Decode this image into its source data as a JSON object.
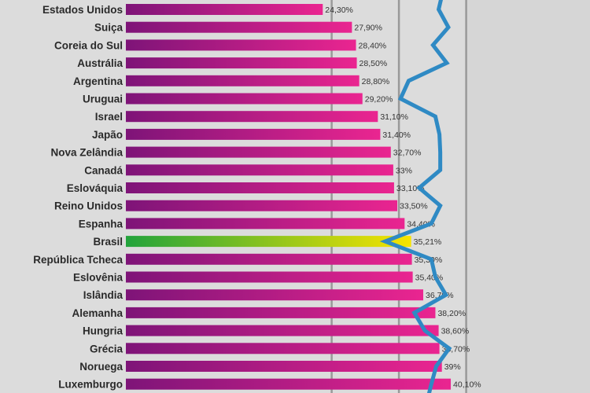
{
  "chart_data": {
    "type": "bar",
    "orientation": "horizontal",
    "title": "",
    "xlabel": "",
    "ylabel": "",
    "xlim": [
      0,
      57.5
    ],
    "grid": true,
    "gridlines_at": [
      25.4,
      33.7,
      42.0
    ],
    "categories": [
      "Estados Unidos",
      "Suiça",
      "Coreia do Sul",
      "Austrália",
      "Argentina",
      "Uruguai",
      "Israel",
      "Japão",
      "Nova Zelândia",
      "Canadá",
      "Eslováquia",
      "Reino Unidos",
      "Espanha",
      "Brasil",
      "República Tcheca",
      "Eslovênia",
      "Islândia",
      "Alemanha",
      "Hungria",
      "Grécia",
      "Noruega",
      "Luxemburgo"
    ],
    "values": [
      24.3,
      27.9,
      28.4,
      28.5,
      28.8,
      29.2,
      31.1,
      31.4,
      32.7,
      33,
      33.1,
      33.5,
      34.4,
      35.21,
      35.3,
      35.4,
      36.7,
      38.2,
      38.6,
      38.7,
      39,
      40.1
    ],
    "value_labels": [
      "24,30%",
      "27,90%",
      "28,40%",
      "28,50%",
      "28,80%",
      "29,20%",
      "31,10%",
      "31,40%",
      "32,70%",
      "33%",
      "33,10%",
      "33,50%",
      "34,40%",
      "35,21%",
      "35,30%",
      "35,40%",
      "36,70%",
      "38,20%",
      "38,60%",
      "38,70%",
      "39%",
      "40,10%"
    ],
    "highlight": "Brasil",
    "line_series": {
      "name": "",
      "values": [
        38.6,
        39.8,
        37.9,
        39.6,
        34.9,
        33.9,
        38.2,
        38.7,
        38.8,
        38.8,
        36.2,
        38.8,
        37.7,
        32.0,
        37.7,
        38.2,
        39.5,
        35.6,
        36.9,
        39.9,
        38.3,
        37.7
      ]
    },
    "colors": {
      "bar_start": "#7e1478",
      "bar_end": "#ea2590",
      "highlight_start": "#22a33c",
      "highlight_end": "#f7e400",
      "line": "#2f8ac4",
      "grid": "#999999",
      "background": "#dcdcdc"
    }
  }
}
